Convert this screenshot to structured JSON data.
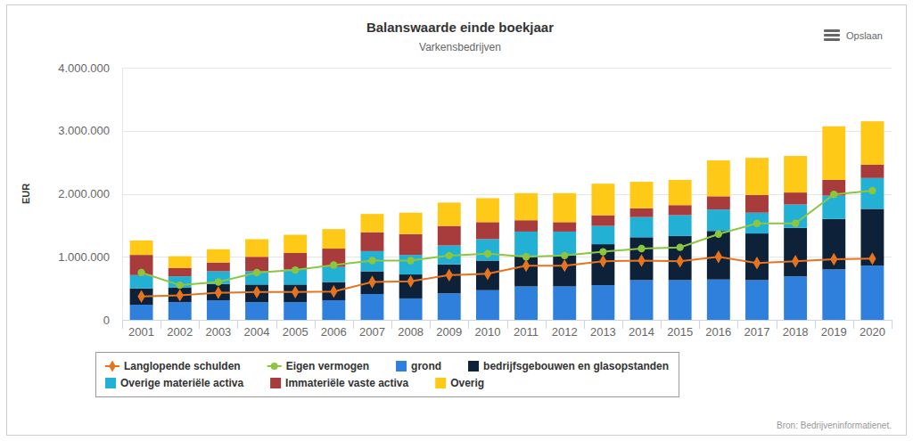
{
  "chart_data": {
    "type": "bar",
    "title": "Balanswaarde einde boekjaar",
    "subtitle": "Varkensbedrijven",
    "y_label": "EUR",
    "menu_label": "Opslaan",
    "source": "Bron: Bedrijveninformatienet.",
    "stacked": true,
    "grid": true,
    "legend": "bottom",
    "categories": [
      "2001",
      "2002",
      "2003",
      "2004",
      "2005",
      "2006",
      "2007",
      "2008",
      "2009",
      "2010",
      "2011",
      "2012",
      "2013",
      "2014",
      "2015",
      "2016",
      "2017",
      "2018",
      "2019",
      "2020"
    ],
    "ylim": [
      0,
      4000000
    ],
    "yticks": [
      0,
      {
        "value": 1000000,
        "label": "1.000.000"
      },
      {
        "value": 2000000,
        "label": "2.000.000"
      },
      {
        "value": 3000000,
        "label": "3.000.000"
      },
      {
        "value": 4000000,
        "label": "4.000.000"
      }
    ],
    "series": [
      {
        "name": "Langlopende schulden",
        "type": "line",
        "marker": "diamond",
        "color": "#e8731f",
        "values": [
          370000,
          390000,
          430000,
          440000,
          440000,
          450000,
          600000,
          610000,
          710000,
          730000,
          860000,
          860000,
          930000,
          940000,
          930000,
          1000000,
          900000,
          930000,
          960000,
          970000
        ]
      },
      {
        "name": "Eigen vermogen",
        "type": "line",
        "marker": "circle",
        "color": "#8cc63f",
        "values": [
          750000,
          550000,
          600000,
          750000,
          790000,
          870000,
          940000,
          940000,
          1020000,
          1050000,
          1000000,
          1020000,
          1080000,
          1130000,
          1150000,
          1360000,
          1530000,
          1530000,
          1990000,
          2050000
        ]
      },
      {
        "name": "grond",
        "type": "bar",
        "color": "#2f80dd",
        "values": [
          240000,
          280000,
          310000,
          280000,
          280000,
          310000,
          410000,
          340000,
          420000,
          470000,
          530000,
          530000,
          550000,
          630000,
          630000,
          640000,
          630000,
          690000,
          800000,
          860000
        ]
      },
      {
        "name": "bedrijfsgebouwen en glasopstanden",
        "type": "bar",
        "color": "#0d2238",
        "values": [
          260000,
          230000,
          260000,
          280000,
          280000,
          290000,
          360000,
          380000,
          460000,
          470000,
          490000,
          490000,
          650000,
          680000,
          700000,
          770000,
          740000,
          770000,
          800000,
          900000
        ]
      },
      {
        "name": "Overige materiële activa",
        "type": "bar",
        "color": "#22b1d4",
        "values": [
          210000,
          180000,
          200000,
          210000,
          240000,
          240000,
          320000,
          310000,
          300000,
          340000,
          380000,
          380000,
          290000,
          320000,
          330000,
          340000,
          330000,
          370000,
          370000,
          490000
        ]
      },
      {
        "name": "Immateriële vaste activa",
        "type": "bar",
        "color": "#a83c3c",
        "values": [
          320000,
          130000,
          140000,
          230000,
          260000,
          290000,
          300000,
          330000,
          310000,
          270000,
          180000,
          150000,
          170000,
          140000,
          160000,
          210000,
          280000,
          190000,
          250000,
          210000
        ]
      },
      {
        "name": "Overig",
        "type": "bar",
        "color": "#ffc918",
        "values": [
          230000,
          190000,
          210000,
          280000,
          290000,
          310000,
          290000,
          340000,
          370000,
          380000,
          430000,
          460000,
          500000,
          420000,
          400000,
          570000,
          590000,
          580000,
          850000,
          690000
        ]
      }
    ]
  }
}
